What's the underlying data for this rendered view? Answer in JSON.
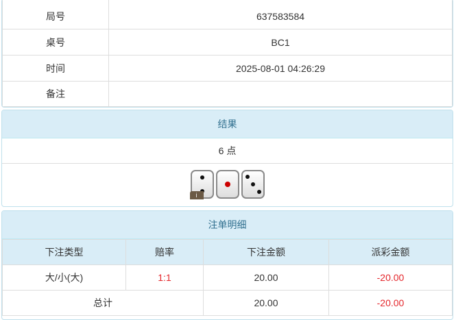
{
  "info": [
    {
      "label": "局号",
      "value": "637583584"
    },
    {
      "label": "桌号",
      "value": "BC1"
    },
    {
      "label": "时间",
      "value": "2025-08-01 04:26:29"
    },
    {
      "label": "备注",
      "value": ""
    }
  ],
  "result": {
    "title": "结果",
    "points": "6 点",
    "dice": [
      2,
      1,
      3
    ],
    "info_icon": "i"
  },
  "bets": {
    "title": "注单明细",
    "headers": [
      "下注类型",
      "赔率",
      "下注金额",
      "派彩金额"
    ],
    "rows": [
      {
        "type": "大/小(大)",
        "odds": "1:1",
        "amount": "20.00",
        "payout": "-20.00"
      }
    ],
    "total": {
      "label": "总计",
      "amount": "20.00",
      "payout": "-20.00"
    }
  },
  "colors": {
    "header_bg": "#d9edf7",
    "header_text": "#31708f",
    "negative": "#e4262b"
  }
}
